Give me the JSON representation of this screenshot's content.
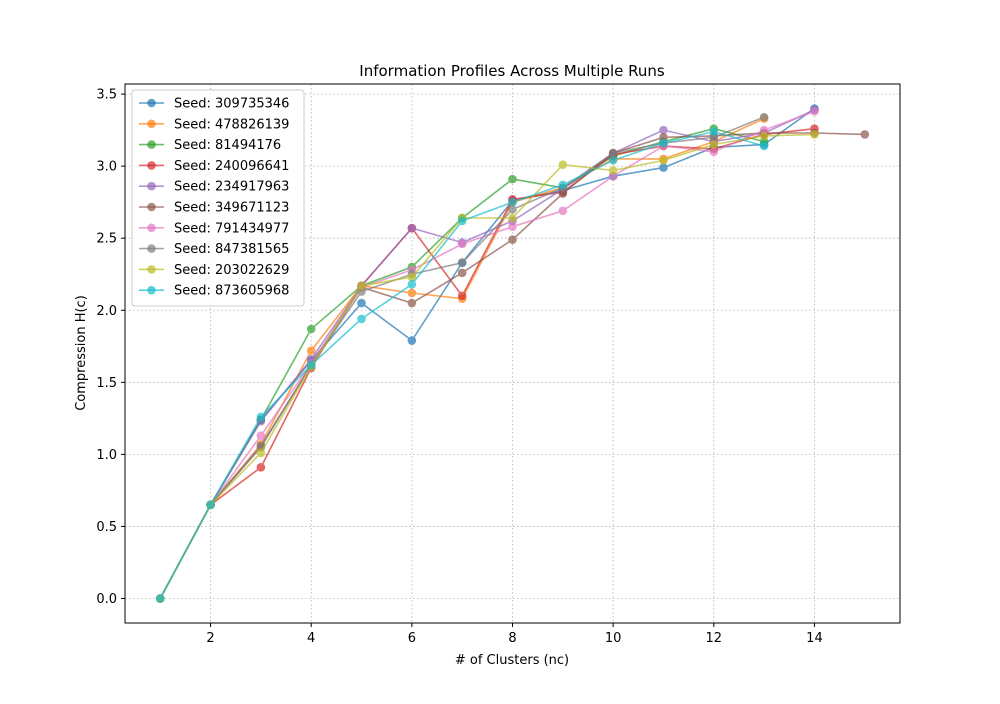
{
  "chart_data": {
    "type": "line",
    "title": "Information Profiles Across Multiple Runs",
    "xlabel": "# of Clusters (nc)",
    "ylabel": "Compression H(c)",
    "xlim": [
      0.3,
      15.7
    ],
    "ylim": [
      -0.17,
      3.57
    ],
    "xticks": [
      2,
      4,
      6,
      8,
      10,
      12,
      14
    ],
    "yticks": [
      0.0,
      0.5,
      1.0,
      1.5,
      2.0,
      2.5,
      3.0,
      3.5
    ],
    "xtick_labels": [
      "2",
      "4",
      "6",
      "8",
      "10",
      "12",
      "14"
    ],
    "ytick_labels": [
      "0.0",
      "0.5",
      "1.0",
      "1.5",
      "2.0",
      "2.5",
      "3.0",
      "3.5"
    ],
    "grid": true,
    "legend_position": "top-left",
    "series": [
      {
        "name": "Seed: 309735346",
        "color": "#1f77b4",
        "x": [
          1,
          2,
          3,
          4,
          5,
          6,
          7,
          8,
          9,
          10,
          11,
          12,
          13,
          14
        ],
        "values": [
          0.0,
          0.65,
          1.24,
          1.65,
          2.05,
          1.79,
          2.33,
          2.76,
          2.83,
          2.93,
          2.99,
          3.13,
          3.15,
          3.4
        ]
      },
      {
        "name": "Seed: 478826139",
        "color": "#ff7f0e",
        "x": [
          1,
          2,
          3,
          4,
          5,
          6,
          7,
          8,
          9,
          10,
          11,
          12,
          13
        ],
        "values": [
          0.0,
          0.65,
          1.07,
          1.72,
          2.17,
          2.12,
          2.08,
          2.75,
          2.85,
          3.05,
          3.05,
          3.17,
          3.33
        ]
      },
      {
        "name": "Seed: 81494176",
        "color": "#2ca02c",
        "x": [
          1,
          2,
          3,
          4,
          5,
          6,
          7,
          8,
          9,
          10,
          11,
          12,
          13
        ],
        "values": [
          0.0,
          0.65,
          1.24,
          1.87,
          2.17,
          2.3,
          2.64,
          2.91,
          2.85,
          3.07,
          3.17,
          3.26,
          3.17
        ]
      },
      {
        "name": "Seed: 240096641",
        "color": "#d62728",
        "x": [
          1,
          2,
          3,
          4,
          5,
          6,
          7,
          8,
          9,
          10,
          11,
          12,
          13,
          14
        ],
        "values": [
          0.0,
          0.65,
          0.91,
          1.6,
          2.17,
          2.57,
          2.1,
          2.77,
          2.82,
          3.08,
          3.14,
          3.12,
          3.22,
          3.26
        ]
      },
      {
        "name": "Seed: 234917963",
        "color": "#9467bd",
        "x": [
          1,
          2,
          3,
          4,
          5,
          6,
          7,
          8,
          9,
          10,
          11,
          12,
          13,
          14
        ],
        "values": [
          0.0,
          0.65,
          1.23,
          1.66,
          2.17,
          2.57,
          2.47,
          2.62,
          2.84,
          3.09,
          3.25,
          3.17,
          3.23,
          3.39
        ]
      },
      {
        "name": "Seed: 349671123",
        "color": "#8c564b",
        "x": [
          1,
          2,
          3,
          4,
          5,
          6,
          7,
          8,
          9,
          10,
          11,
          12,
          13,
          14,
          15
        ],
        "values": [
          0.0,
          0.65,
          1.05,
          1.62,
          2.16,
          2.05,
          2.26,
          2.49,
          2.81,
          3.09,
          3.2,
          3.21,
          3.23,
          3.23,
          3.22
        ]
      },
      {
        "name": "Seed: 791434977",
        "color": "#e377c2",
        "x": [
          1,
          2,
          3,
          4,
          5,
          6,
          7,
          8,
          9,
          10,
          11,
          12,
          13,
          14
        ],
        "values": [
          0.0,
          0.65,
          1.13,
          1.63,
          2.16,
          2.28,
          2.46,
          2.58,
          2.69,
          2.93,
          3.14,
          3.1,
          3.25,
          3.38
        ]
      },
      {
        "name": "Seed: 847381565",
        "color": "#7f7f7f",
        "x": [
          1,
          2,
          3,
          4,
          5,
          6,
          7,
          8,
          9,
          10,
          11,
          12,
          13
        ],
        "values": [
          0.0,
          0.65,
          1.06,
          1.62,
          2.13,
          2.25,
          2.33,
          2.7,
          2.85,
          3.09,
          3.16,
          3.2,
          3.34
        ]
      },
      {
        "name": "Seed: 203022629",
        "color": "#bcbd22",
        "x": [
          1,
          2,
          3,
          4,
          5,
          6,
          7,
          8,
          9,
          10,
          11,
          12,
          13,
          14
        ],
        "values": [
          0.0,
          0.65,
          1.01,
          1.61,
          2.17,
          2.23,
          2.64,
          2.64,
          3.01,
          2.97,
          3.04,
          3.15,
          3.21,
          3.22
        ]
      },
      {
        "name": "Seed: 873605968",
        "color": "#17becf",
        "x": [
          1,
          2,
          3,
          4,
          5,
          6,
          7,
          8,
          9,
          10,
          11,
          12,
          13
        ],
        "values": [
          0.0,
          0.65,
          1.26,
          1.62,
          1.94,
          2.18,
          2.62,
          2.75,
          2.87,
          3.04,
          3.16,
          3.24,
          3.14
        ]
      }
    ]
  }
}
